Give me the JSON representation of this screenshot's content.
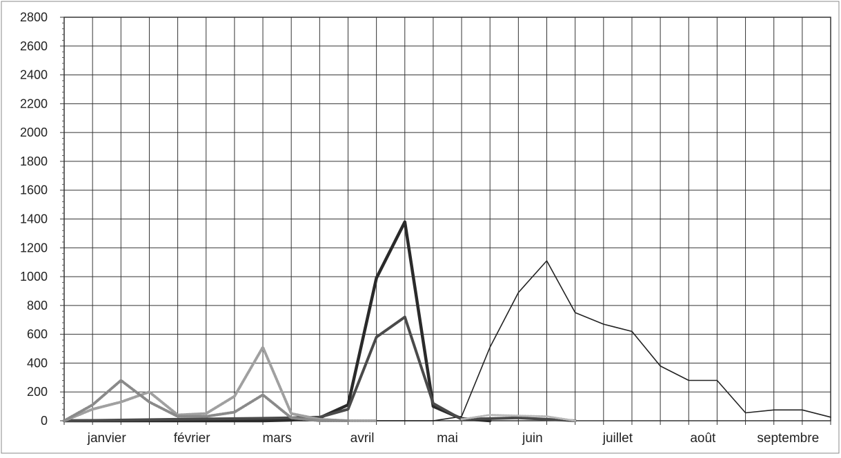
{
  "chart_data": {
    "type": "line",
    "title": "",
    "xlabel": "",
    "ylabel": "",
    "ylim": [
      0,
      2800
    ],
    "y_ticks": [
      0,
      200,
      400,
      600,
      800,
      1000,
      1200,
      1400,
      1600,
      1800,
      2000,
      2200,
      2400,
      2600,
      2800
    ],
    "x_period_count": 27,
    "month_labels": [
      "janvier",
      "février",
      "mars",
      "avril",
      "mai",
      "juin",
      "juillet",
      "août",
      "septembre"
    ],
    "month_label_periods": [
      2,
      5,
      8,
      11,
      14,
      17,
      20,
      23,
      26
    ],
    "grid": true,
    "legend": "none",
    "series": [
      {
        "style": "thin-solid",
        "color": "#222222",
        "x": [
          0,
          13,
          14,
          15,
          16,
          17,
          18,
          19,
          20,
          21,
          22,
          23,
          24,
          25,
          26,
          27
        ],
        "values": [
          0,
          0,
          30,
          510,
          890,
          1110,
          750,
          670,
          620,
          380,
          280,
          280,
          55,
          75,
          75,
          25
        ]
      },
      {
        "style": "thick-dark",
        "color": "#2a2a2a",
        "x": [
          0,
          7,
          8,
          9,
          10,
          11,
          12,
          13,
          14,
          15
        ],
        "values": [
          0,
          0,
          5,
          20,
          110,
          990,
          1380,
          100,
          15,
          0
        ]
      },
      {
        "style": "thick-medium",
        "color": "#4a4a4a",
        "x": [
          0,
          8,
          9,
          10,
          11,
          12,
          13,
          14,
          15,
          16,
          17,
          18
        ],
        "values": [
          0,
          20,
          25,
          80,
          580,
          720,
          120,
          10,
          15,
          20,
          10,
          0
        ]
      },
      {
        "style": "hatched-light",
        "color": "#a0a0a0",
        "x": [
          0,
          1,
          2,
          3,
          4,
          5,
          6,
          7,
          8,
          9,
          10,
          11
        ],
        "values": [
          0,
          80,
          130,
          200,
          40,
          50,
          170,
          510,
          50,
          10,
          0,
          0
        ]
      },
      {
        "style": "hatched-medium",
        "color": "#8a8a8a",
        "x": [
          0,
          1,
          2,
          3,
          4,
          5,
          6,
          7,
          8,
          9,
          10
        ],
        "values": [
          0,
          110,
          280,
          130,
          30,
          30,
          60,
          180,
          20,
          0,
          0
        ]
      },
      {
        "style": "hatched-faint",
        "color": "#b8b8b8",
        "x": [
          14,
          15,
          16,
          17,
          18
        ],
        "values": [
          10,
          40,
          35,
          30,
          0
        ]
      }
    ]
  }
}
